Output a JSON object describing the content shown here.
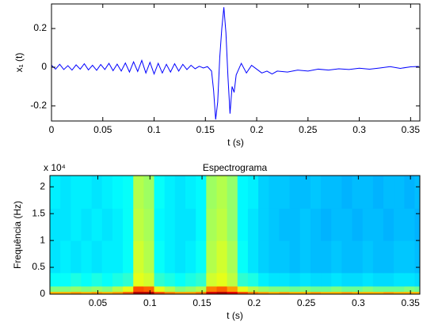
{
  "chart_data": [
    {
      "type": "line",
      "xlabel": "t (s)",
      "ylabel": "x₁ (t)",
      "color": "#0000ff",
      "x": [
        0,
        0.004,
        0.008,
        0.012,
        0.016,
        0.02,
        0.024,
        0.028,
        0.032,
        0.036,
        0.04,
        0.044,
        0.048,
        0.052,
        0.056,
        0.06,
        0.064,
        0.068,
        0.072,
        0.076,
        0.08,
        0.084,
        0.088,
        0.092,
        0.096,
        0.1,
        0.104,
        0.108,
        0.112,
        0.116,
        0.12,
        0.124,
        0.128,
        0.132,
        0.136,
        0.14,
        0.144,
        0.148,
        0.152,
        0.156,
        0.158,
        0.16,
        0.162,
        0.164,
        0.166,
        0.168,
        0.17,
        0.172,
        0.174,
        0.176,
        0.178,
        0.18,
        0.185,
        0.19,
        0.195,
        0.2,
        0.205,
        0.21,
        0.215,
        0.22,
        0.23,
        0.24,
        0.25,
        0.26,
        0.27,
        0.28,
        0.29,
        0.3,
        0.31,
        0.32,
        0.33,
        0.34,
        0.35,
        0.358
      ],
      "values": [
        0.01,
        -0.01,
        0.015,
        -0.012,
        0.008,
        -0.015,
        0.012,
        -0.01,
        0.018,
        -0.014,
        0.01,
        -0.016,
        0.014,
        -0.012,
        0.02,
        -0.018,
        0.016,
        -0.02,
        0.022,
        -0.025,
        0.028,
        -0.022,
        0.035,
        -0.03,
        0.025,
        -0.035,
        0.02,
        -0.03,
        0.015,
        -0.025,
        0.018,
        -0.02,
        0.015,
        -0.012,
        0.01,
        -0.008,
        0.005,
        -0.004,
        0.003,
        -0.02,
        -0.12,
        -0.27,
        -0.18,
        0.05,
        0.2,
        0.31,
        0.18,
        -0.05,
        -0.24,
        -0.1,
        -0.13,
        -0.04,
        0.02,
        -0.03,
        0.01,
        -0.01,
        -0.03,
        -0.02,
        -0.035,
        -0.02,
        -0.025,
        -0.015,
        -0.02,
        -0.01,
        -0.015,
        -0.008,
        -0.012,
        -0.005,
        -0.01,
        -0.004,
        0.003,
        -0.006,
        0.002,
        0.004
      ],
      "xlim": [
        0,
        0.359
      ],
      "ylim": [
        -0.278,
        0.327
      ],
      "xticks": [
        0,
        0.05,
        0.1,
        0.15,
        0.2,
        0.25,
        0.3,
        0.35
      ],
      "yticks": [
        -0.2,
        0,
        0.2
      ]
    },
    {
      "type": "heatmap",
      "title": "Espectrograma",
      "xlabel": "t (s)",
      "ylabel": "Frequência (Hz)",
      "multiplier": "x 10⁴",
      "xbins": [
        0.004,
        0.014,
        0.024,
        0.034,
        0.044,
        0.054,
        0.064,
        0.074,
        0.084,
        0.094,
        0.104,
        0.114,
        0.124,
        0.134,
        0.144,
        0.154,
        0.164,
        0.174,
        0.184,
        0.194,
        0.204,
        0.214,
        0.224,
        0.234,
        0.244,
        0.254,
        0.264,
        0.274,
        0.284,
        0.294,
        0.304,
        0.314,
        0.324,
        0.334,
        0.344,
        0.354,
        0.359
      ],
      "ybins": [
        0,
        500,
        1500,
        4000,
        10000,
        16000,
        22050
      ],
      "z": [
        [
          0.7,
          0.7,
          0.72,
          0.7,
          0.72,
          0.7,
          0.72,
          0.78,
          0.95,
          0.95,
          0.8,
          0.75,
          0.72,
          0.72,
          0.75,
          0.92,
          0.95,
          0.9,
          0.8,
          0.75,
          0.72,
          0.7,
          0.72,
          0.7,
          0.7,
          0.72,
          0.7,
          0.7,
          0.72,
          0.7,
          0.7,
          0.7,
          0.72,
          0.7,
          0.7,
          0.7
        ],
        [
          0.5,
          0.5,
          0.52,
          0.5,
          0.52,
          0.5,
          0.55,
          0.6,
          0.8,
          0.78,
          0.6,
          0.55,
          0.5,
          0.52,
          0.55,
          0.75,
          0.78,
          0.72,
          0.6,
          0.55,
          0.52,
          0.5,
          0.5,
          0.48,
          0.5,
          0.48,
          0.48,
          0.5,
          0.48,
          0.48,
          0.5,
          0.48,
          0.48,
          0.48,
          0.5,
          0.48
        ],
        [
          0.38,
          0.38,
          0.4,
          0.38,
          0.4,
          0.38,
          0.4,
          0.42,
          0.6,
          0.58,
          0.42,
          0.4,
          0.38,
          0.4,
          0.42,
          0.58,
          0.6,
          0.56,
          0.42,
          0.4,
          0.36,
          0.35,
          0.35,
          0.34,
          0.35,
          0.34,
          0.34,
          0.35,
          0.34,
          0.34,
          0.35,
          0.34,
          0.34,
          0.35,
          0.35,
          0.34
        ],
        [
          0.35,
          0.36,
          0.35,
          0.36,
          0.35,
          0.36,
          0.36,
          0.38,
          0.58,
          0.55,
          0.38,
          0.36,
          0.35,
          0.36,
          0.38,
          0.55,
          0.58,
          0.54,
          0.38,
          0.35,
          0.33,
          0.32,
          0.32,
          0.31,
          0.32,
          0.31,
          0.31,
          0.32,
          0.31,
          0.31,
          0.32,
          0.31,
          0.31,
          0.32,
          0.32,
          0.31
        ],
        [
          0.35,
          0.35,
          0.36,
          0.35,
          0.36,
          0.35,
          0.36,
          0.38,
          0.56,
          0.54,
          0.37,
          0.36,
          0.35,
          0.35,
          0.37,
          0.54,
          0.56,
          0.52,
          0.37,
          0.35,
          0.33,
          0.32,
          0.31,
          0.31,
          0.32,
          0.31,
          0.3,
          0.31,
          0.31,
          0.3,
          0.31,
          0.31,
          0.3,
          0.31,
          0.31,
          0.3
        ],
        [
          0.36,
          0.35,
          0.36,
          0.36,
          0.35,
          0.36,
          0.37,
          0.38,
          0.55,
          0.53,
          0.38,
          0.36,
          0.35,
          0.36,
          0.37,
          0.53,
          0.55,
          0.52,
          0.37,
          0.36,
          0.33,
          0.32,
          0.32,
          0.31,
          0.31,
          0.32,
          0.31,
          0.31,
          0.3,
          0.31,
          0.31,
          0.3,
          0.31,
          0.31,
          0.3,
          0.31
        ]
      ],
      "xlim": [
        0.004,
        0.359
      ],
      "ylim": [
        0,
        22100
      ],
      "xticks": [
        0.05,
        0.1,
        0.15,
        0.2,
        0.25,
        0.3,
        0.35
      ],
      "yticks": [
        0,
        {
          "value": 5000,
          "label": "0.5"
        },
        {
          "value": 10000,
          "label": "1"
        },
        {
          "value": 15000,
          "label": "1.5"
        },
        {
          "value": 20000,
          "label": "2"
        }
      ]
    }
  ]
}
